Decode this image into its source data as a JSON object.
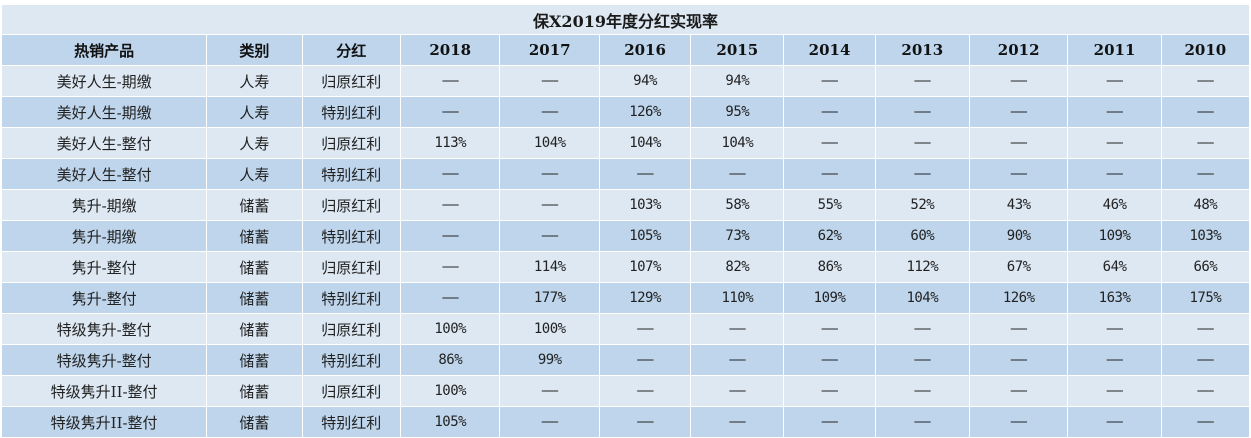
{
  "title": "保X2019年度分红实现率",
  "headers": [
    "热销产品",
    "类别",
    "分红",
    "2018",
    "2017",
    "2016",
    "2015",
    "2014",
    "2013",
    "2012",
    "2011",
    "2010"
  ],
  "rows": [
    {
      "product": "美好人生-期缴",
      "category": "人寿",
      "dividend": "归原红利",
      "values": [
        "——",
        "——",
        "94%",
        "94%",
        "——",
        "——",
        "——",
        "——",
        "——"
      ]
    },
    {
      "product": "美好人生-期缴",
      "category": "人寿",
      "dividend": "特别红利",
      "values": [
        "——",
        "——",
        "126%",
        "95%",
        "——",
        "——",
        "——",
        "——",
        "——"
      ]
    },
    {
      "product": "美好人生-整付",
      "category": "人寿",
      "dividend": "归原红利",
      "values": [
        "113%",
        "104%",
        "104%",
        "104%",
        "——",
        "——",
        "——",
        "——",
        "——"
      ]
    },
    {
      "product": "美好人生-整付",
      "category": "人寿",
      "dividend": "特别红利",
      "values": [
        "——",
        "——",
        "——",
        "——",
        "——",
        "——",
        "——",
        "——",
        "——"
      ]
    },
    {
      "product": "隽升-期缴",
      "category": "储蓄",
      "dividend": "归原红利",
      "values": [
        "——",
        "——",
        "103%",
        "58%",
        "55%",
        "52%",
        "43%",
        "46%",
        "48%"
      ]
    },
    {
      "product": "隽升-期缴",
      "category": "储蓄",
      "dividend": "特别红利",
      "values": [
        "——",
        "——",
        "105%",
        "73%",
        "62%",
        "60%",
        "90%",
        "109%",
        "103%"
      ]
    },
    {
      "product": "隽升-整付",
      "category": "储蓄",
      "dividend": "归原红利",
      "values": [
        "——",
        "114%",
        "107%",
        "82%",
        "86%",
        "112%",
        "67%",
        "64%",
        "66%"
      ]
    },
    {
      "product": "隽升-整付",
      "category": "储蓄",
      "dividend": "特别红利",
      "values": [
        "——",
        "177%",
        "129%",
        "110%",
        "109%",
        "104%",
        "126%",
        "163%",
        "175%"
      ]
    },
    {
      "product": "特级隽升-整付",
      "category": "储蓄",
      "dividend": "归原红利",
      "values": [
        "100%",
        "100%",
        "——",
        "——",
        "——",
        "——",
        "——",
        "——",
        "——"
      ]
    },
    {
      "product": "特级隽升-整付",
      "category": "储蓄",
      "dividend": "特别红利",
      "values": [
        "86%",
        "99%",
        "——",
        "——",
        "——",
        "——",
        "——",
        "——",
        "——"
      ]
    },
    {
      "product": "特级隽升II-整付",
      "category": "储蓄",
      "dividend": "归原红利",
      "values": [
        "100%",
        "——",
        "——",
        "——",
        "——",
        "——",
        "——",
        "——",
        "——"
      ]
    },
    {
      "product": "特级隽升II-整付",
      "category": "储蓄",
      "dividend": "特别红利",
      "values": [
        "105%",
        "——",
        "——",
        "——",
        "——",
        "——",
        "——",
        "——",
        "——"
      ]
    }
  ]
}
